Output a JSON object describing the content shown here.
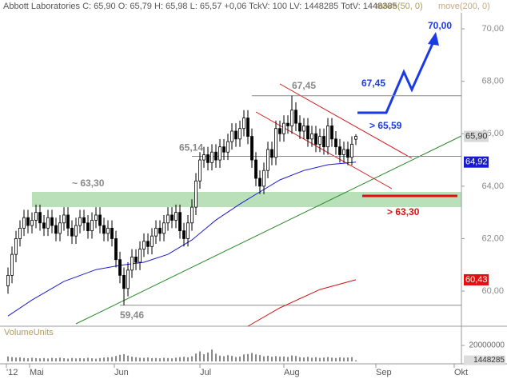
{
  "chart_data": {
    "type": "candlestick",
    "title": "Abbott Laboratories C: 65,90 O: 65,79 H: 65,98 L: 65,57 +0,06 TckV: 100 LV: 1448285 TotV: 1448385",
    "x": [
      0,
      1,
      2,
      3,
      4,
      5,
      6,
      7,
      8,
      9,
      10,
      11,
      12,
      13,
      14,
      15,
      16,
      17,
      18,
      19,
      20,
      21,
      22,
      23,
      24,
      25,
      26,
      27,
      28,
      29,
      30,
      31,
      32,
      33,
      34,
      35,
      36,
      37,
      38,
      39,
      40,
      41,
      42,
      43,
      44,
      45,
      46,
      47,
      48,
      49,
      50,
      51,
      52,
      53,
      54,
      55,
      56,
      57,
      58,
      59,
      60,
      61,
      62,
      63,
      64,
      65,
      66,
      67,
      68,
      69,
      70,
      71,
      72,
      73,
      74,
      75,
      76,
      77,
      78,
      79,
      80,
      81,
      82,
      83,
      84,
      85,
      86,
      87
    ],
    "open": [
      60.2,
      60.6,
      61.4,
      62.0,
      62.4,
      62.8,
      62.5,
      62.7,
      63.0,
      62.6,
      62.4,
      62.8,
      62.5,
      62.2,
      62.6,
      62.9,
      62.4,
      62.1,
      62.5,
      62.8,
      62.6,
      62.3,
      62.7,
      62.9,
      62.5,
      62.2,
      62.4,
      62.0,
      61.2,
      60.6,
      60.1,
      60.8,
      61.3,
      61.1,
      61.6,
      61.9,
      61.7,
      62.1,
      62.4,
      62.2,
      62.6,
      62.9,
      62.7,
      63.0,
      62.3,
      62.0,
      62.6,
      63.2,
      64.2,
      65.0,
      65.2,
      64.9,
      65.3,
      65.0,
      65.5,
      65.3,
      65.7,
      66.1,
      65.8,
      66.2,
      66.6,
      65.9,
      65.0,
      64.3,
      64.0,
      64.6,
      65.4,
      65.1,
      66.2,
      66.0,
      66.4,
      66.3,
      66.9,
      66.4,
      66.1,
      66.3,
      65.8,
      66.0,
      65.6,
      65.9,
      65.5,
      66.3,
      65.8,
      65.5,
      65.2,
      65.4,
      65.1,
      65.79
    ],
    "high": [
      60.9,
      61.7,
      62.3,
      62.7,
      63.1,
      63.1,
      63.0,
      63.3,
      63.3,
      62.9,
      63.1,
      63.1,
      62.8,
      62.9,
      63.2,
      63.2,
      62.7,
      62.8,
      63.1,
      63.1,
      62.9,
      63.0,
      63.2,
      63.2,
      62.8,
      62.7,
      62.7,
      62.3,
      61.5,
      60.9,
      61.1,
      61.6,
      61.6,
      61.9,
      62.2,
      62.2,
      62.4,
      62.7,
      62.7,
      62.9,
      63.2,
      63.2,
      63.3,
      63.3,
      62.6,
      62.9,
      63.5,
      64.5,
      65.3,
      65.5,
      65.5,
      65.6,
      65.6,
      65.8,
      65.8,
      66.0,
      66.4,
      66.4,
      66.5,
      66.9,
      66.9,
      66.2,
      65.3,
      64.6,
      64.9,
      65.7,
      65.7,
      66.5,
      66.5,
      66.7,
      66.7,
      67.45,
      67.2,
      66.7,
      66.6,
      66.6,
      66.3,
      66.3,
      66.2,
      66.2,
      66.6,
      66.6,
      66.1,
      65.8,
      65.7,
      65.7,
      65.9,
      65.98
    ],
    "low": [
      59.9,
      60.3,
      61.1,
      61.7,
      62.1,
      62.2,
      62.2,
      62.4,
      62.3,
      62.1,
      62.1,
      62.2,
      61.9,
      61.9,
      62.3,
      62.1,
      61.8,
      61.8,
      62.2,
      62.3,
      62.0,
      62.0,
      62.4,
      62.2,
      61.9,
      61.9,
      61.7,
      60.9,
      60.3,
      59.46,
      59.8,
      60.5,
      60.8,
      60.8,
      61.3,
      61.4,
      61.4,
      61.8,
      61.9,
      61.9,
      62.3,
      62.4,
      62.4,
      62.0,
      61.7,
      61.7,
      62.3,
      62.9,
      63.9,
      64.7,
      64.6,
      64.6,
      64.7,
      64.7,
      65.0,
      65.0,
      65.4,
      65.5,
      65.5,
      65.9,
      65.6,
      64.7,
      64.0,
      63.7,
      63.7,
      64.3,
      64.8,
      64.8,
      65.7,
      65.7,
      66.0,
      66.0,
      66.1,
      65.8,
      65.8,
      65.5,
      65.5,
      65.3,
      65.3,
      65.2,
      65.2,
      65.5,
      65.2,
      64.9,
      64.9,
      64.8,
      64.8,
      65.57
    ],
    "close": [
      60.6,
      61.4,
      62.0,
      62.4,
      62.8,
      62.5,
      62.7,
      63.0,
      62.6,
      62.4,
      62.8,
      62.5,
      62.2,
      62.6,
      62.9,
      62.4,
      62.1,
      62.5,
      62.8,
      62.6,
      62.3,
      62.7,
      62.9,
      62.5,
      62.2,
      62.4,
      62.0,
      61.2,
      60.6,
      60.1,
      60.8,
      61.3,
      61.1,
      61.6,
      61.9,
      61.7,
      62.1,
      62.4,
      62.2,
      62.6,
      62.9,
      62.7,
      63.0,
      62.3,
      62.0,
      62.6,
      63.2,
      64.2,
      65.0,
      65.2,
      64.9,
      65.3,
      65.0,
      65.5,
      65.3,
      65.7,
      66.1,
      65.8,
      66.2,
      66.6,
      65.9,
      65.0,
      64.3,
      64.0,
      64.6,
      65.4,
      65.1,
      66.2,
      66.0,
      66.4,
      66.3,
      66.9,
      66.4,
      66.1,
      66.3,
      65.8,
      66.0,
      65.6,
      65.9,
      65.5,
      66.3,
      65.8,
      65.5,
      65.2,
      65.4,
      65.1,
      65.6,
      65.9
    ],
    "up_color": "#ffffff",
    "down_color": "#000000",
    "xlim": [
      -2,
      113.4
    ],
    "xticks": [
      {
        "value": -0.4,
        "label": "'12"
      },
      {
        "value": 5.4,
        "label": "Mai"
      },
      {
        "value": 26.6,
        "label": "Jun"
      },
      {
        "value": 48,
        "label": "Jul"
      },
      {
        "value": 69,
        "label": "Aug"
      },
      {
        "value": 92,
        "label": "Sep"
      },
      {
        "value": 111.6,
        "label": "Okt"
      }
    ],
    "ylim": [
      58.66,
      71.1
    ],
    "yticks": [
      {
        "value": 60,
        "label": "60,00"
      },
      {
        "value": 62,
        "label": "62,00"
      },
      {
        "value": 64,
        "label": "64,00"
      },
      {
        "value": 66,
        "label": "66,00"
      },
      {
        "value": 68,
        "label": "68,00"
      },
      {
        "value": 70,
        "label": "70,00"
      }
    ],
    "series": [
      {
        "name": "move(50, 0)",
        "color": "#1a1ad0",
        "x": [
          0,
          6,
          14,
          22,
          28,
          34,
          40,
          46,
          52,
          58,
          62,
          68,
          74,
          80,
          87
        ],
        "values": [
          59.05,
          59.66,
          60.37,
          60.82,
          60.98,
          61.1,
          61.4,
          61.95,
          62.71,
          63.32,
          63.69,
          64.24,
          64.6,
          64.82,
          64.92
        ],
        "tag": {
          "value": 64.92,
          "label": "64,92"
        }
      },
      {
        "name": "move(200, 0)",
        "color": "#d01010",
        "x": [
          60,
          68,
          78,
          87
        ],
        "values": [
          58.66,
          59.36,
          60.06,
          60.43
        ],
        "tag": {
          "value": 60.43,
          "label": "60,43"
        }
      }
    ],
    "close_tag": {
      "value": 65.9,
      "label": "65,90"
    },
    "levels": [
      {
        "value": 67.45,
        "label": "67,45"
      },
      {
        "value": 65.14,
        "label": "65,14"
      },
      {
        "value": 59.46,
        "label": "59,46"
      }
    ],
    "annotations": [
      "~ 63,30",
      "70,00",
      "67,45",
      "> 65,59",
      "> 63,30"
    ],
    "volume": {
      "label": "VolumeUnits",
      "color": "#8a8a8a",
      "ylim": [
        0,
        20000000
      ],
      "yticks": [
        20000000
      ],
      "values": [
        6200000,
        5400000,
        4800000,
        5100000,
        4300000,
        3900000,
        4600000,
        4100000,
        3800000,
        4200000,
        3600000,
        4400000,
        3900000,
        4700000,
        4000000,
        3500000,
        4300000,
        3700000,
        4100000,
        3800000,
        4500000,
        3900000,
        3400000,
        4200000,
        4800000,
        5100000,
        5600000,
        6800000,
        8200000,
        9100000,
        7300000,
        5900000,
        5200000,
        4600000,
        4400000,
        4900000,
        4100000,
        4300000,
        3900000,
        4500000,
        4200000,
        3800000,
        4600000,
        5300000,
        5800000,
        5100000,
        6400000,
        9800000,
        12500000,
        8900000,
        11200000,
        14800000,
        9600000,
        7200000,
        6500000,
        7800000,
        6900000,
        5400000,
        6100000,
        8700000,
        9200000,
        10600000,
        8800000,
        7900000,
        6300000,
        7100000,
        5800000,
        6600000,
        5900000,
        6200000,
        5600000,
        7400000,
        6800000,
        5300000,
        4900000,
        5700000,
        4600000,
        5200000,
        4400000,
        4800000,
        5500000,
        4700000,
        4300000,
        5100000,
        4600000,
        4900000,
        5300000,
        1448285
      ]
    }
  }
}
